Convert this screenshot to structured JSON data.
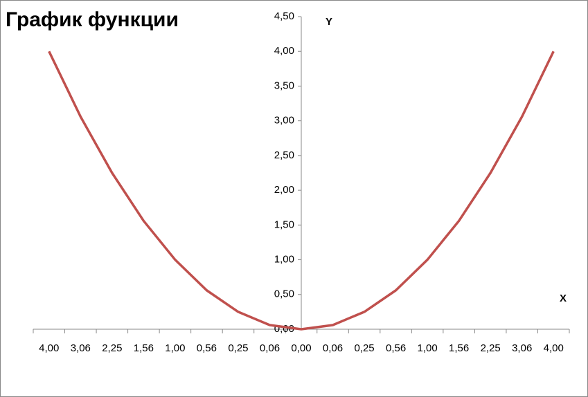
{
  "chart_data": {
    "type": "line",
    "title": "График функции",
    "x_axis_label": "X",
    "y_axis_label": "Y",
    "categories": [
      "4,00",
      "3,06",
      "2,25",
      "1,56",
      "1,00",
      "0,56",
      "0,25",
      "0,06",
      "0,00",
      "0,06",
      "0,25",
      "0,56",
      "1,00",
      "1,56",
      "2,25",
      "3,06",
      "4,00"
    ],
    "series": [
      {
        "name": "Y",
        "color": "#c0504d",
        "values": [
          4.0,
          3.06,
          2.25,
          1.56,
          1.0,
          0.56,
          0.25,
          0.06,
          0.0,
          0.06,
          0.25,
          0.56,
          1.0,
          1.56,
          2.25,
          3.06,
          4.0
        ]
      }
    ],
    "ylim": [
      0,
      4.5
    ],
    "yticks": [
      {
        "value": 0,
        "label": "0,00"
      },
      {
        "value": 0.5,
        "label": "0,50"
      },
      {
        "value": 1,
        "label": "1,00"
      },
      {
        "value": 1.5,
        "label": "1,50"
      },
      {
        "value": 2,
        "label": "2,00"
      },
      {
        "value": 2.5,
        "label": "2,50"
      },
      {
        "value": 3,
        "label": "3,00"
      },
      {
        "value": 3.5,
        "label": "3,50"
      },
      {
        "value": 4,
        "label": "4,00"
      },
      {
        "value": 4.5,
        "label": "4,50"
      }
    ],
    "grid": false
  }
}
